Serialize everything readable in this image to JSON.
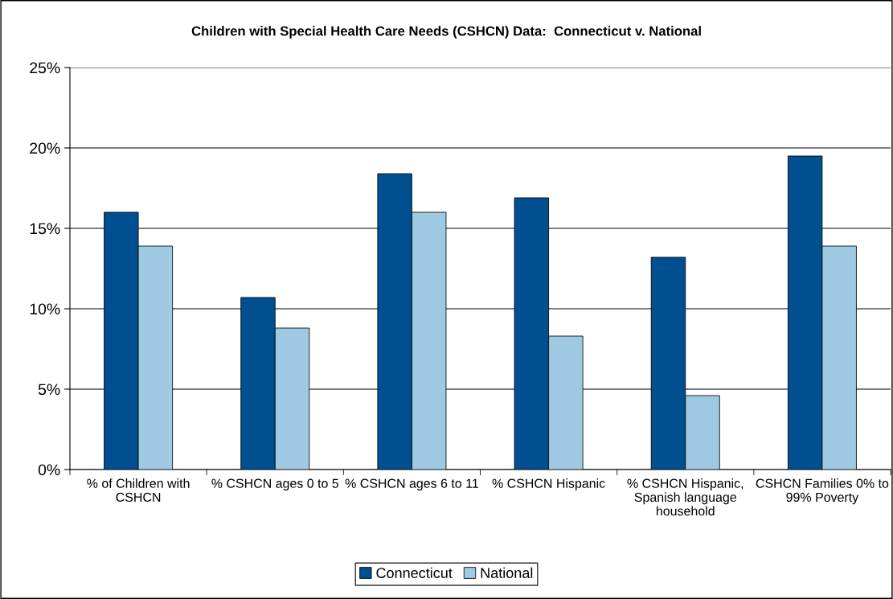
{
  "chart_data": {
    "type": "bar",
    "title": "Children with Special Health Care Needs (CSHCN) Data:  Connecticut v. National",
    "categories": [
      "% of Children with CSHCN",
      "% CSHCN ages 0 to 5",
      "% CSHCN ages 6 to 11",
      "% CSHCN Hispanic",
      "% CSHCN Hispanic, Spanish language household",
      "CSHCN Families 0% to 99% Poverty"
    ],
    "series": [
      {
        "name": "Connecticut",
        "color": "#004f91",
        "values": [
          16.0,
          10.7,
          18.4,
          16.9,
          13.2,
          19.5
        ]
      },
      {
        "name": "National",
        "color": "#9dcae2",
        "values": [
          13.9,
          8.8,
          16.0,
          8.3,
          4.6,
          13.9
        ]
      }
    ],
    "ylim": [
      0,
      25
    ],
    "yticks": [
      {
        "value": 0,
        "label": "0%"
      },
      {
        "value": 5,
        "label": "5%"
      },
      {
        "value": 10,
        "label": "10%"
      },
      {
        "value": 15,
        "label": "15%"
      },
      {
        "value": 20,
        "label": "20%"
      },
      {
        "value": 25,
        "label": "25%"
      }
    ],
    "grid": "y",
    "legend": "bottom"
  }
}
